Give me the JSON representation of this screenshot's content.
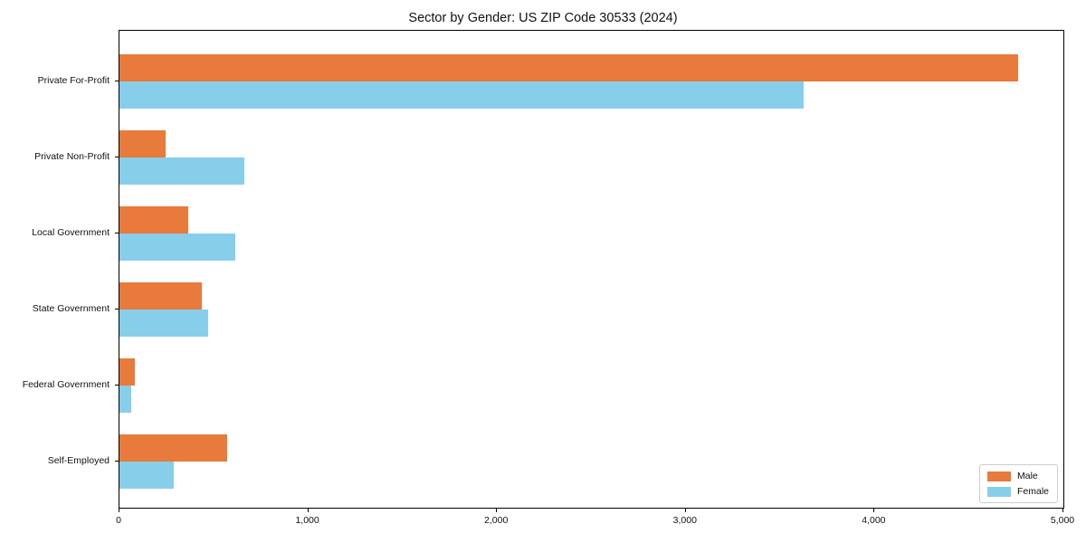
{
  "chart_data": {
    "type": "bar",
    "orientation": "horizontal",
    "title": "Sector by Gender: US ZIP Code 30533 (2024)",
    "categories": [
      "Private For-Profit",
      "Private Non-Profit",
      "Local Government",
      "State Government",
      "Federal Government",
      "Self-Employed"
    ],
    "series": [
      {
        "name": "Male",
        "color": "#e87a3c",
        "values": [
          4760,
          245,
          365,
          435,
          80,
          570
        ]
      },
      {
        "name": "Female",
        "color": "#87ceeb",
        "values": [
          3625,
          660,
          615,
          470,
          60,
          290
        ]
      }
    ],
    "xlabel": "",
    "ylabel": "",
    "xlim": [
      0,
      5000
    ],
    "x_ticks": [
      0,
      1000,
      2000,
      3000,
      4000,
      5000
    ],
    "x_tick_labels": [
      "0",
      "1,000",
      "2,000",
      "3,000",
      "4,000",
      "5,000"
    ],
    "grid": false,
    "legend": {
      "position": "lower right"
    }
  }
}
